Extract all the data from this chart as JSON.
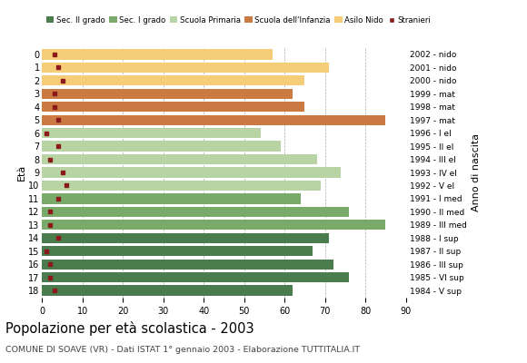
{
  "ages": [
    18,
    17,
    16,
    15,
    14,
    13,
    12,
    11,
    10,
    9,
    8,
    7,
    6,
    5,
    4,
    3,
    2,
    1,
    0
  ],
  "values": [
    62,
    76,
    72,
    67,
    71,
    85,
    76,
    64,
    69,
    74,
    68,
    59,
    54,
    85,
    65,
    62,
    65,
    71,
    57
  ],
  "stranieri": [
    3,
    2,
    2,
    1,
    4,
    2,
    2,
    4,
    6,
    5,
    2,
    4,
    1,
    4,
    3,
    3,
    5,
    4,
    3
  ],
  "age_colors": {
    "18": "#4a7c4e",
    "17": "#4a7c4e",
    "16": "#4a7c4e",
    "15": "#4a7c4e",
    "14": "#4a7c4e",
    "13": "#7aaa6a",
    "12": "#7aaa6a",
    "11": "#7aaa6a",
    "10": "#b8d4a4",
    "9": "#b8d4a4",
    "8": "#b8d4a4",
    "7": "#b8d4a4",
    "6": "#b8d4a4",
    "5": "#cc7a44",
    "4": "#cc7a44",
    "3": "#cc7a44",
    "2": "#f5cc78",
    "1": "#f5cc78",
    "0": "#f5cc78"
  },
  "stranieri_color": "#8b1a1a",
  "right_labels": {
    "18": "1984 - V sup",
    "17": "1985 - VI sup",
    "16": "1986 - III sup",
    "15": "1987 - II sup",
    "14": "1988 - I sup",
    "13": "1989 - III med",
    "12": "1990 - II med",
    "11": "1991 - I med",
    "10": "1992 - V el",
    "9": "1993 - IV el",
    "8": "1994 - III el",
    "7": "1995 - II el",
    "6": "1996 - I el",
    "5": "1997 - mat",
    "4": "1998 - mat",
    "3": "1999 - mat",
    "2": "2000 - nido",
    "1": "2001 - nido",
    "0": "2002 - nido"
  },
  "legend_labels": [
    "Sec. II grado",
    "Sec. I grado",
    "Scuola Primaria",
    "Scuola dell'Infanzia",
    "Asilo Nido",
    "Stranieri"
  ],
  "legend_colors": [
    "#4a7c4e",
    "#7aaa6a",
    "#b8d4a4",
    "#cc7a44",
    "#f5cc78",
    "#8b1a1a"
  ],
  "title": "Popolazione per età scolastica - 2003",
  "subtitle": "COMUNE DI SOAVE (VR) - Dati ISTAT 1° gennaio 2003 - Elaborazione TUTTITALIA.IT",
  "ylabel_left": "Età",
  "ylabel_right": "Anno di nascita",
  "xlim": [
    0,
    90
  ],
  "figsize": [
    5.8,
    4.0
  ],
  "dpi": 100
}
